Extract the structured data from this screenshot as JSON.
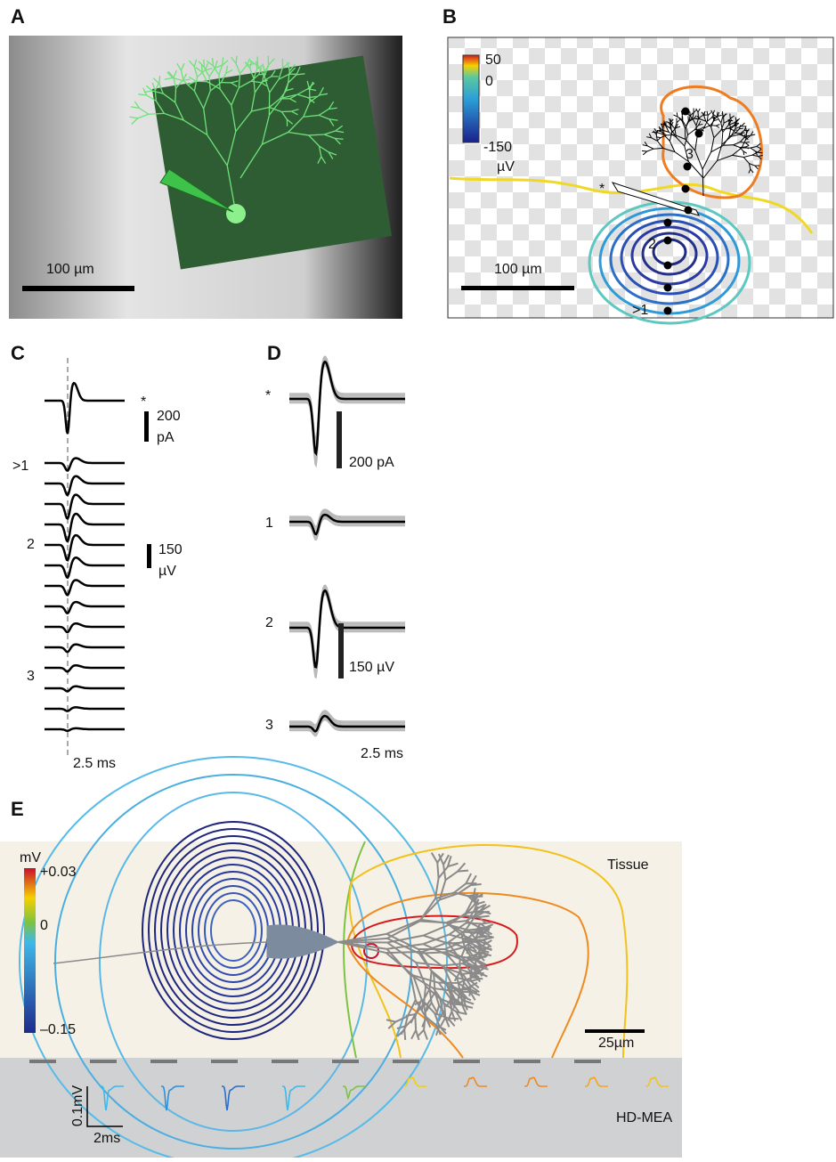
{
  "panels": {
    "a": {
      "label": "A",
      "scale_bar": "100 µm"
    },
    "b": {
      "label": "B",
      "colorbar": {
        "max": "50",
        "mid": "0",
        "min": "-150",
        "unit": "µV"
      },
      "scale_bar": "100 µm",
      "markers": [
        "*",
        "3",
        "2",
        ">1"
      ]
    },
    "c": {
      "label": "C",
      "star": "*",
      "current_bar": [
        "200",
        "pA"
      ],
      "rows": [
        ">1",
        "2",
        "3"
      ],
      "voltage_bar": [
        "150",
        "µV"
      ],
      "time_bar": "2.5 ms"
    },
    "d": {
      "label": "D",
      "rows": [
        "*",
        "1",
        "2",
        "3"
      ],
      "current_bar": "200 pA",
      "voltage_bar": "150 µV",
      "time_bar": "2.5 ms"
    },
    "e": {
      "label": "E",
      "colorbar": {
        "unit": "mV",
        "max": "+0.03",
        "mid": "0",
        "min": "–0.15"
      },
      "tissue": "Tissue",
      "scale_bar": "25µm",
      "device": "HD-MEA",
      "amp_bar": "0.1mV",
      "time_bar": "2ms"
    }
  }
}
